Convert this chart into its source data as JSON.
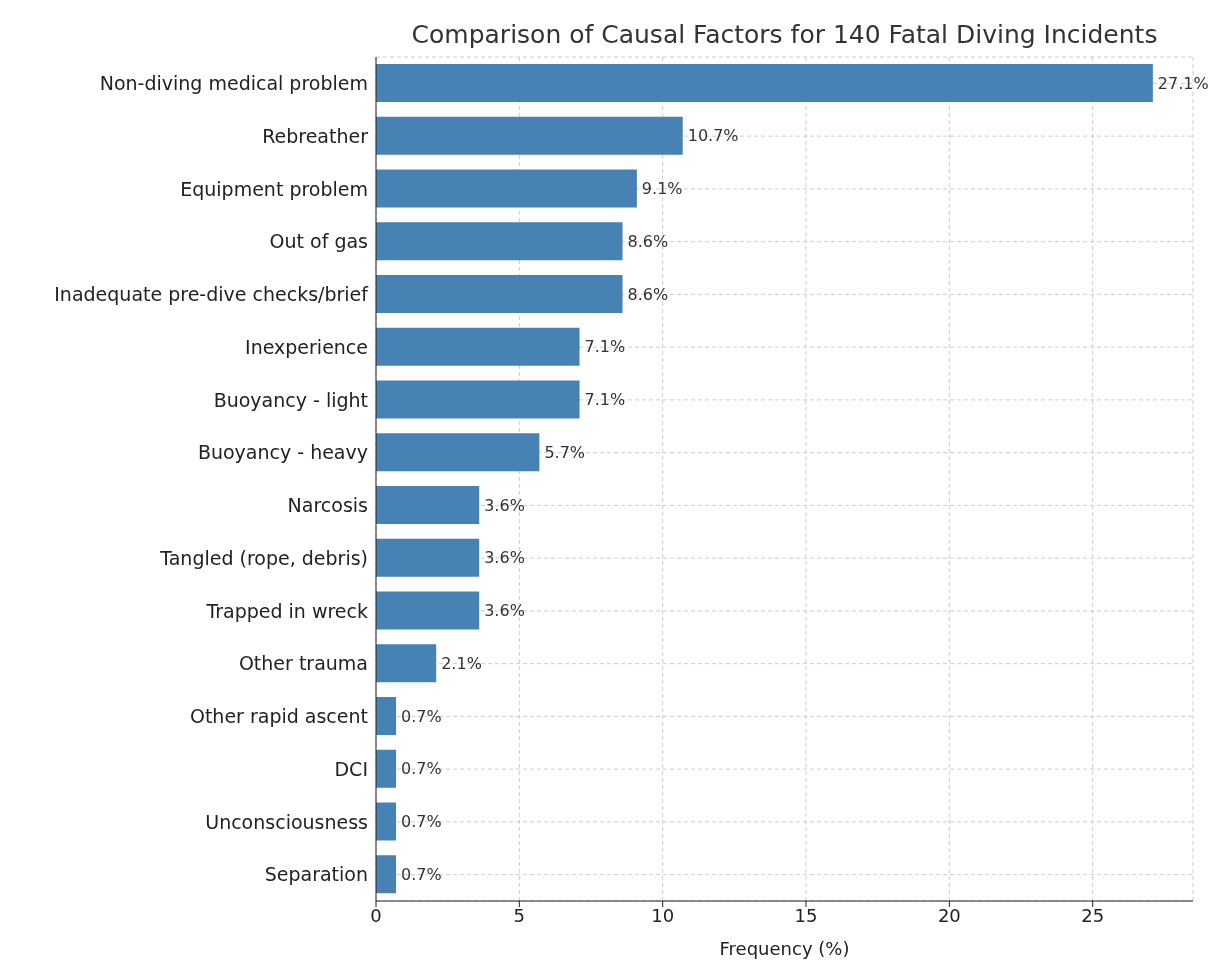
{
  "chart_data": {
    "type": "bar",
    "orientation": "horizontal",
    "title": "Comparison of Causal Factors for 140 Fatal Diving Incidents",
    "xlabel": "Frequency (%)",
    "categories": [
      "Non-diving medical problem",
      "Rebreather",
      "Equipment problem",
      "Out of gas",
      "Inadequate pre-dive checks/brief",
      "Inexperience",
      "Buoyancy - light",
      "Buoyancy - heavy",
      "Narcosis",
      "Tangled (rope, debris)",
      "Trapped in wreck",
      "Other trauma",
      "Other rapid ascent",
      "DCI",
      "Unconsciousness",
      "Separation"
    ],
    "values": [
      27.1,
      10.7,
      9.1,
      8.6,
      8.6,
      7.1,
      7.1,
      5.7,
      3.6,
      3.6,
      3.6,
      2.1,
      0.7,
      0.7,
      0.7,
      0.7
    ],
    "value_labels": [
      "27.1%",
      "10.7%",
      "9.1%",
      "8.6%",
      "8.6%",
      "7.1%",
      "7.1%",
      "5.7%",
      "3.6%",
      "3.6%",
      "3.6%",
      "2.1%",
      "0.7%",
      "0.7%",
      "0.7%",
      "0.7%"
    ],
    "color": "#4682b4",
    "xlim": [
      0,
      28.5
    ],
    "xticks": [
      0,
      5,
      10,
      15,
      20,
      25
    ],
    "grid": true,
    "line_style": "dashed"
  }
}
